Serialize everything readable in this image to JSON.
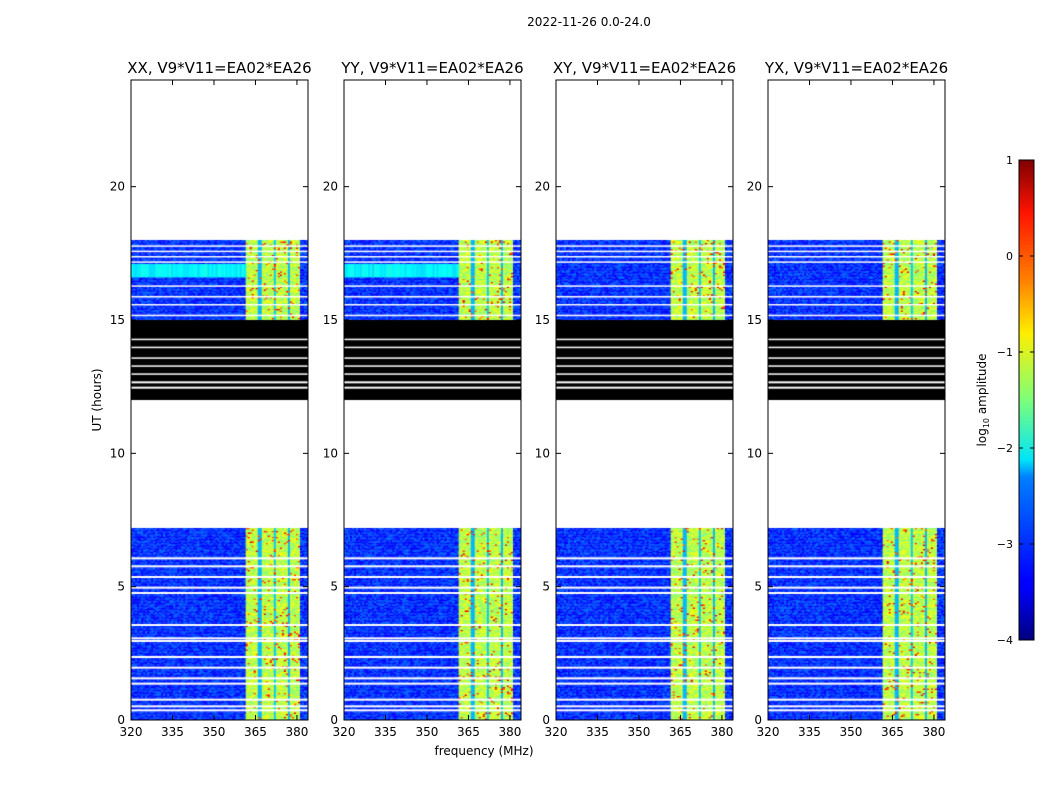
{
  "chart_data": {
    "type": "heatmap",
    "suptitle": "2022-11-26 0.0-24.0",
    "xlabel": "frequency (MHz)",
    "ylabel": "UT (hours)",
    "xlim": [
      320,
      384
    ],
    "ylim": [
      0,
      24
    ],
    "xticks": [
      "320",
      "335",
      "350",
      "365",
      "380"
    ],
    "yticks": [
      "0",
      "5",
      "10",
      "15",
      "20"
    ],
    "panels": [
      {
        "title": "XX, V9*V11=EA02*EA26",
        "polarization": "XX"
      },
      {
        "title": "YY, V9*V11=EA02*EA26",
        "polarization": "YY"
      },
      {
        "title": "XY, V9*V11=EA02*EA26",
        "polarization": "XY"
      },
      {
        "title": "YX, V9*V11=EA02*EA26",
        "polarization": "YX"
      }
    ],
    "data_segments_ut": [
      [
        0.0,
        7.2
      ],
      [
        12.0,
        15.0
      ],
      [
        15.0,
        18.0
      ]
    ],
    "flagged_segment_ut": [
      12.0,
      15.0
    ],
    "rfi_band_mhz": [
      361,
      381
    ],
    "colorbar": {
      "label": "log10 amplitude",
      "label_main": "log",
      "label_sub": "10",
      "label_rest": " amplitude",
      "range": [
        -4,
        1
      ],
      "ticks": [
        "1",
        "0",
        "−1",
        "−2",
        "−3",
        "−4"
      ],
      "colormap": "jet"
    }
  }
}
